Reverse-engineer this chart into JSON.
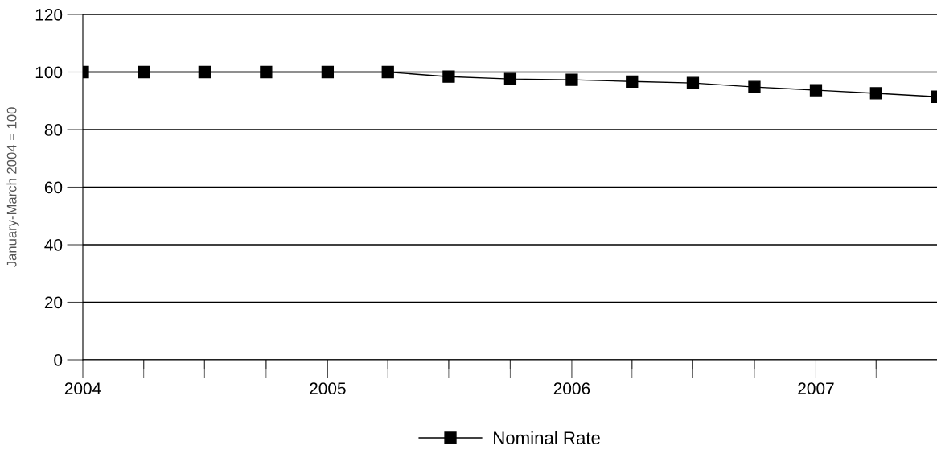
{
  "chart_data": {
    "type": "line",
    "ylabel": "January-March 2004 = 100",
    "x": [
      "2004-01",
      "2004-04",
      "2004-07",
      "2004-10",
      "2005-01",
      "2005-04",
      "2005-07",
      "2005-10",
      "2006-01",
      "2006-04",
      "2006-07",
      "2006-10",
      "2007-01",
      "2007-04",
      "2007-07"
    ],
    "series": [
      {
        "name": "Nominal Rate",
        "color": "#000000",
        "values": [
          100,
          100,
          100,
          100,
          100,
          100,
          98.4,
          97.6,
          97.3,
          96.7,
          96.2,
          94.8,
          93.7,
          92.6,
          91.4
        ]
      }
    ],
    "xlim": [
      "2004-01",
      "2007-07"
    ],
    "xticks": [
      {
        "value": "2004-01",
        "label": "2004"
      },
      {
        "value": "2004-04",
        "label": null
      },
      {
        "value": "2004-07",
        "label": null
      },
      {
        "value": "2004-10",
        "label": null
      },
      {
        "value": "2005-01",
        "label": "2005"
      },
      {
        "value": "2005-04",
        "label": null
      },
      {
        "value": "2005-07",
        "label": null
      },
      {
        "value": "2005-10",
        "label": null
      },
      {
        "value": "2006-01",
        "label": "2006"
      },
      {
        "value": "2006-04",
        "label": null
      },
      {
        "value": "2006-07",
        "label": null
      },
      {
        "value": "2006-10",
        "label": null
      },
      {
        "value": "2007-01",
        "label": "2007"
      },
      {
        "value": "2007-04",
        "label": null
      }
    ],
    "ylim": [
      0,
      120
    ],
    "yticks": [
      0,
      20,
      40,
      60,
      80,
      100,
      120
    ],
    "grid": "y",
    "legend": "bottom",
    "marker": "square",
    "line_style": "solid"
  }
}
